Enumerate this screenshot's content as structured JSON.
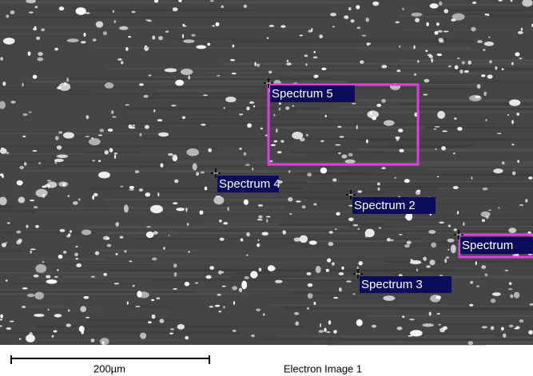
{
  "image": {
    "markers": [
      {
        "label": "Spectrum 5"
      },
      {
        "label": "Spectrum 4"
      },
      {
        "label": "Spectrum 2"
      },
      {
        "label": "Spectrum"
      },
      {
        "label": "Spectrum 3"
      }
    ]
  },
  "scale_bar": {
    "label": "200µm"
  },
  "caption": "Electron Image 1"
}
